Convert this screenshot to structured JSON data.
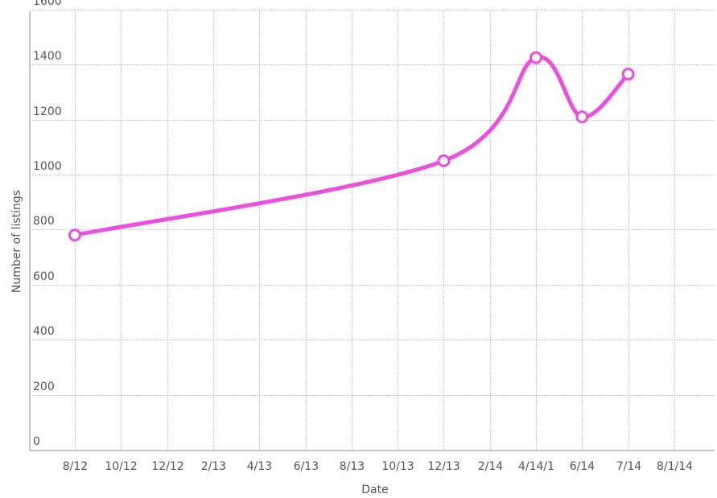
{
  "chart_data": {
    "type": "line",
    "title": "",
    "xlabel": "Date",
    "ylabel": "Number of listings",
    "x_ticks": [
      "8/12",
      "10/12",
      "12/12",
      "2/13",
      "4/13",
      "6/13",
      "8/13",
      "10/13",
      "12/13",
      "2/14",
      "4/14/1",
      "6/14",
      "7/14",
      "8/1/14"
    ],
    "y_ticks": [
      "0",
      "200",
      "400",
      "600",
      "800",
      "1000",
      "1200",
      "1400",
      "1600"
    ],
    "ylim": [
      0,
      1600
    ],
    "grid": true,
    "legend": "none",
    "series": [
      {
        "color": "#ec4fdc",
        "points": [
          {
            "x": "8/12",
            "y": 780
          },
          {
            "x": "12/13",
            "y": 1050
          },
          {
            "x": "4/14/1",
            "y": 1425
          },
          {
            "x": "6/14",
            "y": 1210
          },
          {
            "x": "7/14",
            "y": 1365
          }
        ]
      }
    ]
  }
}
